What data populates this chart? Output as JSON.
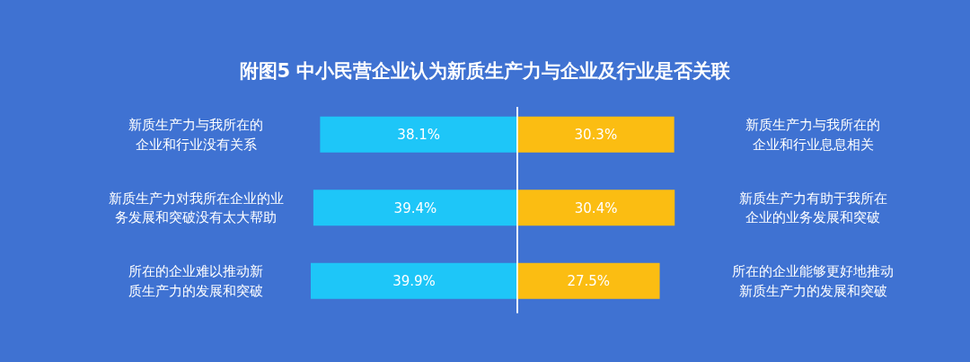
{
  "chart_data": [
    {
      "type": "bar",
      "orientation": "horizontal",
      "title": "附图5  中小民营企业认为新质生产力与企业及行业是否关联",
      "categories": [
        "新质生产力与我所在的企业和行业没有关系",
        "新质生产力对我所在企业的业务发展和突破没有太大帮助",
        "所在的企业难以推动新质生产力的发展和突破"
      ],
      "series": [
        {
          "color": "#1ec6f8",
          "values": [
            38.1,
            39.4,
            39.9
          ],
          "value_labels": [
            "38.1%",
            "39.4%",
            "39.9%"
          ]
        }
      ]
    },
    {
      "type": "bar",
      "orientation": "horizontal",
      "categories": [
        "新质生产力与我所在的企业和行业息息相关",
        "新质生产力有助于我所在企业的业务发展和突破",
        "所在的企业能够更好地推动新质生产力的发展和突破"
      ],
      "series": [
        {
          "color": "#fbbd12",
          "values": [
            30.3,
            30.4,
            27.5
          ],
          "value_labels": [
            "30.3%",
            "30.4%",
            "27.5%"
          ]
        }
      ]
    }
  ]
}
